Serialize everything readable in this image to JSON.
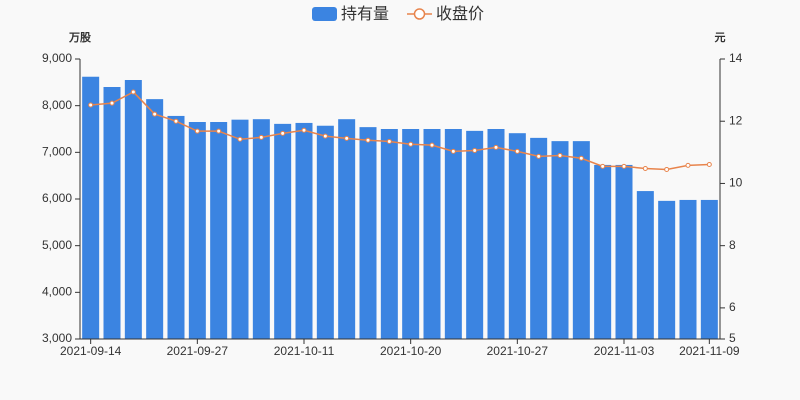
{
  "chart_data": {
    "type": "bar_line",
    "legend": [
      "持有量",
      "收盘价"
    ],
    "ylabel": "万股",
    "y2label": "元",
    "categories": [
      "2021-09-14",
      null,
      null,
      null,
      null,
      "2021-09-27",
      null,
      null,
      null,
      null,
      "2021-10-11",
      null,
      null,
      null,
      null,
      "2021-10-20",
      null,
      null,
      null,
      null,
      "2021-10-27",
      null,
      null,
      null,
      null,
      "2021-11-03",
      null,
      null,
      null,
      "2021-11-09"
    ],
    "series": [
      {
        "name": "持有量",
        "color": "#3b84e1",
        "kind": "bar",
        "values": [
          8620,
          8400,
          8550,
          8140,
          7780,
          7650,
          7650,
          7700,
          7710,
          7610,
          7630,
          7570,
          7710,
          7540,
          7500,
          7500,
          7500,
          7500,
          7460,
          7500,
          7410,
          7310,
          7240,
          7240,
          6730,
          6730,
          6170,
          5960,
          5980,
          5980
        ]
      },
      {
        "name": "收盘价",
        "color": "#e8844c",
        "kind": "line",
        "axis": "y2",
        "values": [
          12.52,
          12.58,
          12.94,
          12.23,
          12.0,
          11.68,
          11.68,
          11.42,
          11.48,
          11.61,
          11.71,
          11.52,
          11.45,
          11.39,
          11.35,
          11.26,
          11.23,
          11.03,
          11.06,
          11.16,
          11.03,
          10.87,
          10.9,
          10.81,
          10.55,
          10.55,
          10.48,
          10.45,
          10.58,
          10.61
        ]
      }
    ],
    "ylim": [
      3000,
      9000
    ],
    "yticks": [
      {
        "value": 3000,
        "label": "3,000"
      },
      {
        "value": 4000,
        "label": "4,000"
      },
      {
        "value": 5000,
        "label": "5,000"
      },
      {
        "value": 6000,
        "label": "6,000"
      },
      {
        "value": 7000,
        "label": "7,000"
      },
      {
        "value": 8000,
        "label": "8,000"
      },
      {
        "value": 9000,
        "label": "9,000"
      }
    ],
    "y2lim": [
      5,
      14
    ],
    "y2ticks": [
      5,
      6,
      8,
      10,
      12,
      14
    ]
  }
}
